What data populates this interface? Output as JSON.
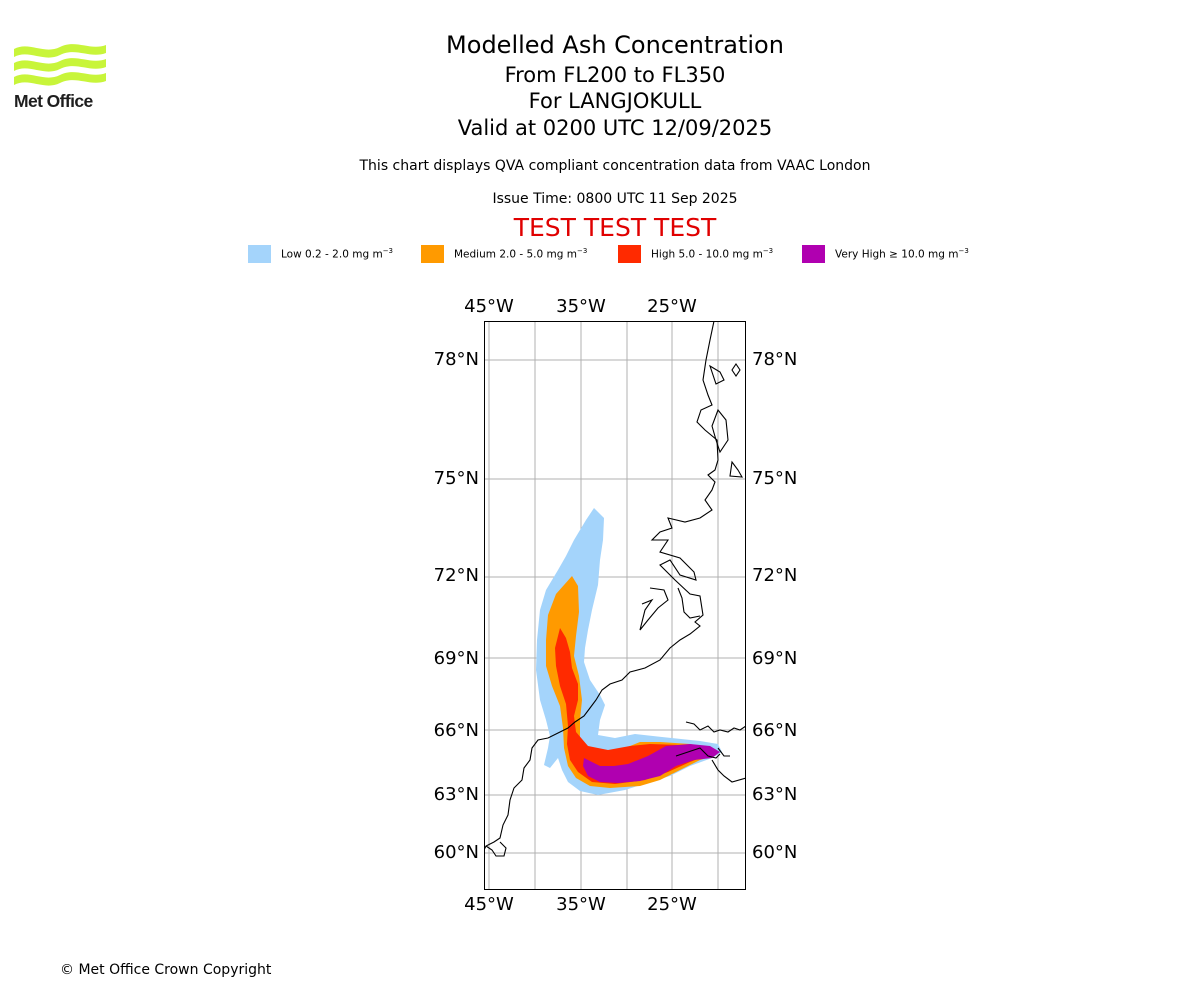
{
  "header": {
    "title": "Modelled Ash Concentration",
    "subtitle_levels": "From FL200 to FL350",
    "subtitle_volcano": "For LANGJOKULL",
    "subtitle_valid": "Valid at 0200 UTC 12/09/2025",
    "note": "This chart displays QVA compliant concentration data from VAAC London",
    "issue_time": "Issue Time: 0800 UTC 11 Sep 2025",
    "test_banner": "TEST TEST TEST"
  },
  "logo": {
    "text": "Met Office",
    "icon": "met-office-waves-logo",
    "color": "#c8f53a"
  },
  "legend": [
    {
      "label": "Low 0.2 - 2.0 mg m",
      "exp": "−3",
      "color": "#a4d4fb"
    },
    {
      "label": "Medium 2.0 - 5.0 mg m",
      "exp": "−3",
      "color": "#ff9a00"
    },
    {
      "label": "High 5.0 - 10.0 mg m",
      "exp": "−3",
      "color": "#ff2a00"
    },
    {
      "label": "Very High  ≥  10.0 mg m",
      "exp": "−3",
      "color": "#b000b0"
    }
  ],
  "map": {
    "lon_ticks": [
      "45°W",
      "35°W",
      "25°W"
    ],
    "lat_ticks": [
      "78°N",
      "75°N",
      "72°N",
      "69°N",
      "66°N",
      "63°N",
      "60°N"
    ],
    "gridlines": true,
    "coastline_color": "#000000",
    "grid_color": "#b0b0b0"
  },
  "footer": {
    "copyright": "© Met Office Crown Copyright"
  }
}
